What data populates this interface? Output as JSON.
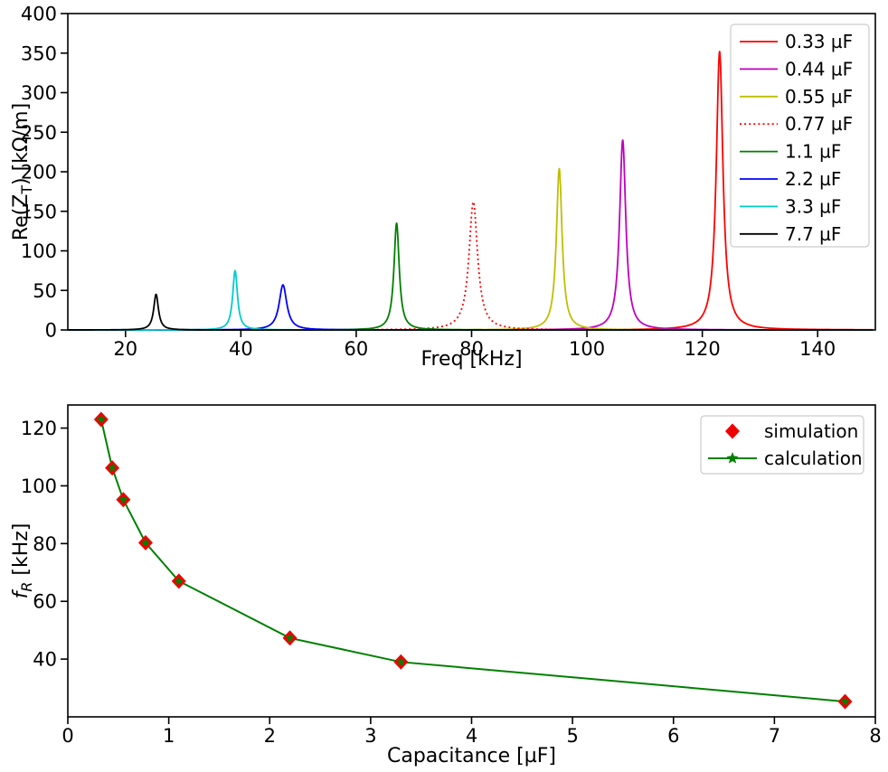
{
  "figure": {
    "background": "#ffffff",
    "text_color": "#000000",
    "axis_color": "#000000",
    "legend_border_color": "#cccccc"
  },
  "chart_data": [
    {
      "id": "impedance-vs-frequency",
      "type": "line",
      "title": "",
      "xlabel": "Freq [kHz]",
      "ylabel": "Re(Z_T) [kΩ/m]",
      "ylabel_parts": [
        {
          "t": "Re(Z"
        },
        {
          "t": "T",
          "sub": true
        },
        {
          "t": ") [kΩ/m]"
        }
      ],
      "xlim": [
        10,
        150
      ],
      "ylim": [
        0,
        400
      ],
      "xticks": [
        20,
        40,
        60,
        80,
        100,
        120,
        140
      ],
      "yticks": [
        0,
        50,
        100,
        150,
        200,
        250,
        300,
        350,
        400
      ],
      "grid": false,
      "legend_position": "upper right",
      "series": [
        {
          "label": "0.33 µF",
          "color": "#ff0000",
          "linestyle": "solid",
          "peak_freq_khz": 123.0,
          "peak_re_z": 352,
          "hwhm_khz": 0.7
        },
        {
          "label": "0.44 µF",
          "color": "#bf00bf",
          "linestyle": "solid",
          "peak_freq_khz": 106.2,
          "peak_re_z": 240,
          "hwhm_khz": 0.65
        },
        {
          "label": "0.55 µF",
          "color": "#bfbf00",
          "linestyle": "solid",
          "peak_freq_khz": 95.2,
          "peak_re_z": 204,
          "hwhm_khz": 0.6
        },
        {
          "label": "0.77 µF",
          "color": "#ff0000",
          "linestyle": "dotted",
          "peak_freq_khz": 80.3,
          "peak_re_z": 162,
          "hwhm_khz": 0.9
        },
        {
          "label": "1.1 µF",
          "color": "#008000",
          "linestyle": "solid",
          "peak_freq_khz": 67.0,
          "peak_re_z": 135,
          "hwhm_khz": 0.55
        },
        {
          "label": "2.2 µF",
          "color": "#0000ff",
          "linestyle": "solid",
          "peak_freq_khz": 47.3,
          "peak_re_z": 57,
          "hwhm_khz": 0.8
        },
        {
          "label": "3.3 µF",
          "color": "#00cccc",
          "linestyle": "solid",
          "peak_freq_khz": 39.0,
          "peak_re_z": 75,
          "hwhm_khz": 0.5
        },
        {
          "label": "7.7 µF",
          "color": "#000000",
          "linestyle": "solid",
          "peak_freq_khz": 25.3,
          "peak_re_z": 45,
          "hwhm_khz": 0.5
        }
      ]
    },
    {
      "id": "resonant-frequency-vs-capacitance",
      "type": "scatter",
      "title": "",
      "xlabel": "Capacitance [µF]",
      "ylabel": "f_R [kHz]",
      "ylabel_parts": [
        {
          "t": "f",
          "italic": true
        },
        {
          "t": "R",
          "sub": true,
          "italic": true
        },
        {
          "t": " [kHz]"
        }
      ],
      "xlim": [
        0,
        8
      ],
      "ylim": [
        20,
        128
      ],
      "xticks": [
        0,
        1,
        2,
        3,
        4,
        5,
        6,
        7,
        8
      ],
      "yticks": [
        40,
        60,
        80,
        100,
        120
      ],
      "grid": false,
      "legend_position": "upper right",
      "x": [
        0.33,
        0.44,
        0.55,
        0.77,
        1.1,
        2.2,
        3.3,
        7.7
      ],
      "series": [
        {
          "label": "simulation",
          "color": "#ee0000",
          "marker": "diamond",
          "line": false,
          "values": [
            123.0,
            106.2,
            95.2,
            80.3,
            67.0,
            47.3,
            39.0,
            25.3
          ]
        },
        {
          "label": "calculation",
          "color": "#008000",
          "marker": "star",
          "line": true,
          "values": [
            123.0,
            106.2,
            95.2,
            80.3,
            67.0,
            47.3,
            39.0,
            25.3
          ]
        }
      ]
    }
  ]
}
